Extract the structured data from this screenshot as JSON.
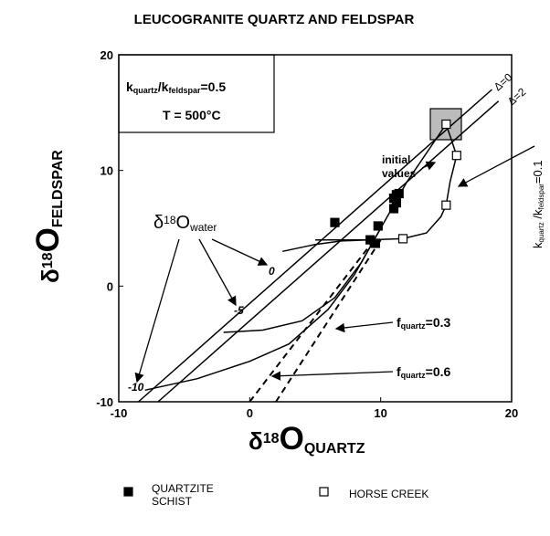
{
  "chart_data": {
    "type": "scatter",
    "title": "LEUCOGRANITE QUARTZ AND FELDSPAR",
    "x_label": [
      {
        "t": "δ"
      },
      {
        "t": "18",
        "s": "sup"
      },
      {
        "t": "O",
        "s": "big"
      },
      {
        "t": "QUARTZ",
        "s": "sub"
      }
    ],
    "y_label": [
      {
        "t": "δ"
      },
      {
        "t": "18",
        "s": "sup"
      },
      {
        "t": "O",
        "s": "big"
      },
      {
        "t": "FELDSPAR",
        "s": "sub"
      }
    ],
    "xlim": [
      -10,
      20
    ],
    "ylim": [
      -10,
      20
    ],
    "xticks": [
      -10,
      0,
      10,
      20
    ],
    "yticks": [
      -10,
      0,
      10,
      20
    ],
    "series": [
      {
        "name": "QUARTZITE SCHIST",
        "marker": "filled",
        "color": "#000000",
        "x": [
          6.5,
          9.2,
          9.8,
          9.6,
          11,
          11.2,
          11.4,
          11,
          11.2
        ],
        "y": [
          5.5,
          4.0,
          5.2,
          3.7,
          7.6,
          7.9,
          8.0,
          6.7,
          7.2
        ]
      },
      {
        "name": "HORSE CREEK",
        "marker": "open",
        "color": "#000000",
        "x": [
          15,
          15.8,
          15,
          11.7
        ],
        "y": [
          14,
          11.3,
          7,
          4.1
        ]
      }
    ],
    "curves": [
      {
        "x": [
          -8.5,
          18.5
        ],
        "y": [
          -10,
          17
        ],
        "dash": false
      },
      {
        "x": [
          -7,
          19
        ],
        "y": [
          -10,
          16
        ],
        "dash": false
      },
      {
        "x": [
          2.5,
          5,
          7,
          9
        ],
        "y": [
          3,
          3.6,
          3.9,
          4
        ],
        "dash": false
      },
      {
        "x": [
          5,
          9,
          11.7,
          13.5,
          14.6,
          15,
          15.3,
          15.8,
          15.3,
          15
        ],
        "y": [
          4,
          4,
          4.1,
          4.6,
          6,
          7,
          9,
          11.3,
          13,
          14
        ],
        "dash": false
      },
      {
        "x": [
          -2,
          1,
          4,
          6.5,
          8.5,
          10,
          12,
          15
        ],
        "y": [
          -4,
          -3.8,
          -3,
          -1,
          2,
          5,
          9,
          14
        ],
        "dash": false
      },
      {
        "x": [
          -8,
          -4,
          0,
          3,
          6,
          8,
          10
        ],
        "y": [
          -9,
          -8,
          -6.5,
          -5,
          -2,
          1,
          5
        ],
        "dash": false
      },
      {
        "x": [
          0,
          9.5
        ],
        "y": [
          -10,
          4
        ],
        "dash": true
      },
      {
        "x": [
          2,
          10
        ],
        "y": [
          -10,
          4
        ],
        "dash": true
      }
    ],
    "annotations": [
      [
        {
          "t": "k"
        },
        {
          "t": "quartz",
          "s": "sub"
        },
        {
          "t": "/k"
        },
        {
          "t": "feldspar",
          "s": "sub"
        },
        {
          "t": "=0.5"
        }
      ],
      [
        {
          "t": "T = 500°C"
        }
      ],
      [
        {
          "t": "initial"
        }
      ],
      [
        {
          "t": "values"
        }
      ],
      [
        {
          "t": "δ"
        },
        {
          "t": "18",
          "s": "sup"
        },
        {
          "t": "O"
        },
        {
          "t": "water",
          "s": "sub"
        }
      ],
      [
        {
          "t": "0"
        }
      ],
      [
        {
          "t": "-5"
        }
      ],
      [
        {
          "t": "-10"
        }
      ],
      [
        {
          "t": "Δ=0"
        }
      ],
      [
        {
          "t": "Δ=2"
        }
      ],
      [
        {
          "t": "k"
        },
        {
          "t": "quartz",
          "s": "sub"
        },
        {
          "t": " /k"
        },
        {
          "t": "feldspar",
          "s": "sub"
        },
        {
          "t": "=0.1"
        }
      ],
      [
        {
          "t": "f"
        },
        {
          "t": "quartz",
          "s": "sub"
        },
        {
          "t": "=0.3"
        }
      ],
      [
        {
          "t": "f"
        },
        {
          "t": "quartz",
          "s": "sub"
        },
        {
          "t": "=0.6"
        }
      ]
    ]
  }
}
